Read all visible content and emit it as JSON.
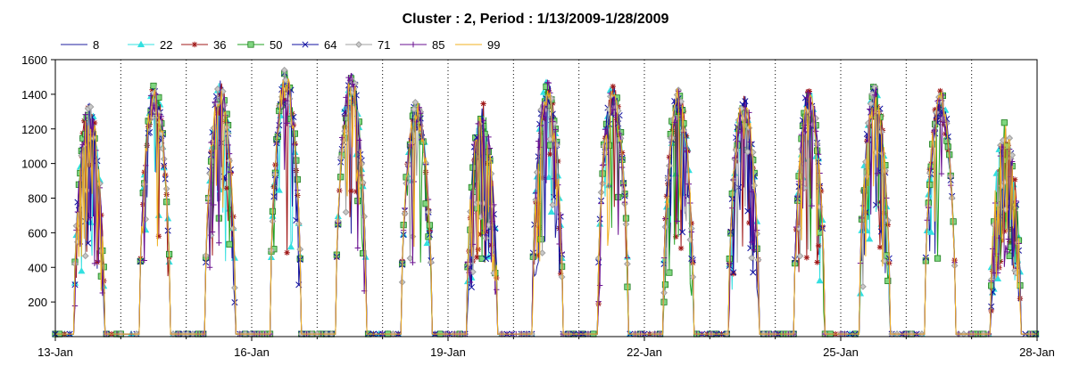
{
  "chart_data": {
    "type": "line",
    "title": "Cluster : 2, Period : 1/13/2009-1/28/2009",
    "xlabel": "",
    "ylabel": "",
    "xlim": [
      "2009-01-13",
      "2009-01-28"
    ],
    "ylim": [
      0,
      1600
    ],
    "y_ticks": [
      200,
      400,
      600,
      800,
      1000,
      1200,
      1400,
      1600
    ],
    "x_ticks": [
      "13-Jan",
      "16-Jan",
      "19-Jan",
      "22-Jan",
      "25-Jan",
      "28-Jan"
    ],
    "grid": "vertical dotted day lines",
    "legend_position": "top",
    "series": [
      {
        "name": "8",
        "color": "#1f1f9f",
        "marker": "none"
      },
      {
        "name": "22",
        "color": "#33e0e0",
        "marker": "triangle"
      },
      {
        "name": "36",
        "color": "#a01818",
        "marker": "star"
      },
      {
        "name": "50",
        "color": "#20a020",
        "marker": "square"
      },
      {
        "name": "64",
        "color": "#1010a0",
        "marker": "x"
      },
      {
        "name": "71",
        "color": "#a0a0a0",
        "marker": "diamond"
      },
      {
        "name": "85",
        "color": "#6a1090",
        "marker": "plus"
      },
      {
        "name": "99",
        "color": "#f0b020",
        "marker": "none"
      }
    ],
    "daily_peaks": [
      {
        "date": "2009-01-13",
        "peak": 1380
      },
      {
        "date": "2009-01-14",
        "peak": 1490
      },
      {
        "date": "2009-01-15",
        "peak": 1510
      },
      {
        "date": "2009-01-16",
        "peak": 1580
      },
      {
        "date": "2009-01-17",
        "peak": 1560
      },
      {
        "date": "2009-01-18",
        "peak": 1390
      },
      {
        "date": "2009-01-19",
        "peak": 1380
      },
      {
        "date": "2009-01-20",
        "peak": 1520
      },
      {
        "date": "2009-01-21",
        "peak": 1490
      },
      {
        "date": "2009-01-22",
        "peak": 1470
      },
      {
        "date": "2009-01-23",
        "peak": 1440
      },
      {
        "date": "2009-01-24",
        "peak": 1470
      },
      {
        "date": "2009-01-25",
        "peak": 1480
      },
      {
        "date": "2009-01-26",
        "peak": 1460
      },
      {
        "date": "2009-01-27",
        "peak": 1270
      }
    ]
  }
}
